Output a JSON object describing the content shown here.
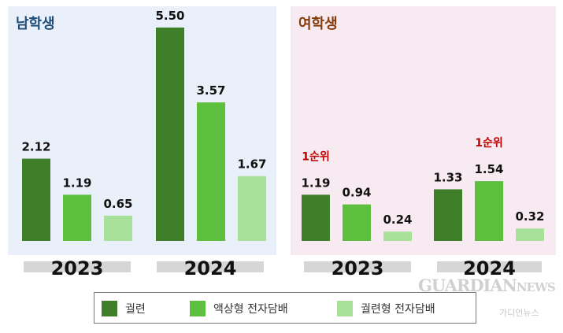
{
  "colors": {
    "cigarette": "#3f7f2a",
    "liquid_ecig": "#5cbf3d",
    "cig_type_ecig": "#a9e19b",
    "year_bar": "#d6d6d6",
    "rank_text": "#c00000"
  },
  "chart_data": [
    {
      "type": "bar",
      "title": "남학생",
      "categories": [
        "2023",
        "2024"
      ],
      "series": [
        {
          "name": "궐련",
          "values": [
            2.12,
            5.5
          ]
        },
        {
          "name": "액상형 전자담배",
          "values": [
            1.19,
            3.57
          ]
        },
        {
          "name": "궐련형 전자담배",
          "values": [
            0.65,
            1.67
          ]
        }
      ],
      "value_labels": [
        [
          "2.12",
          "1.19",
          "0.65"
        ],
        [
          "5.50",
          "3.57",
          "1.67"
        ]
      ],
      "ylim": [
        0,
        5.5
      ]
    },
    {
      "type": "bar",
      "title": "여학생",
      "categories": [
        "2023",
        "2024"
      ],
      "series": [
        {
          "name": "궐련",
          "values": [
            1.19,
            1.33
          ]
        },
        {
          "name": "액상형 전자담배",
          "values": [
            0.94,
            1.54
          ]
        },
        {
          "name": "궐련형 전자담배",
          "values": [
            0.24,
            0.32
          ]
        }
      ],
      "value_labels": [
        [
          "1.19",
          "0.94",
          "0.24"
        ],
        [
          "1.33",
          "1.54",
          "0.32"
        ]
      ],
      "annotations": [
        "1순위",
        "1순위"
      ],
      "ylim": [
        0,
        5.5
      ]
    }
  ],
  "legend": [
    {
      "label": "궐련",
      "color": "#3f7f2a"
    },
    {
      "label": "액상형 전자담배",
      "color": "#5cbf3d"
    },
    {
      "label": "궐련형 전자담배",
      "color": "#a9e19b"
    }
  ],
  "watermark": {
    "main": "GUARDIAN",
    "main_small": "NEWS",
    "sub": "가디언뉴스"
  }
}
